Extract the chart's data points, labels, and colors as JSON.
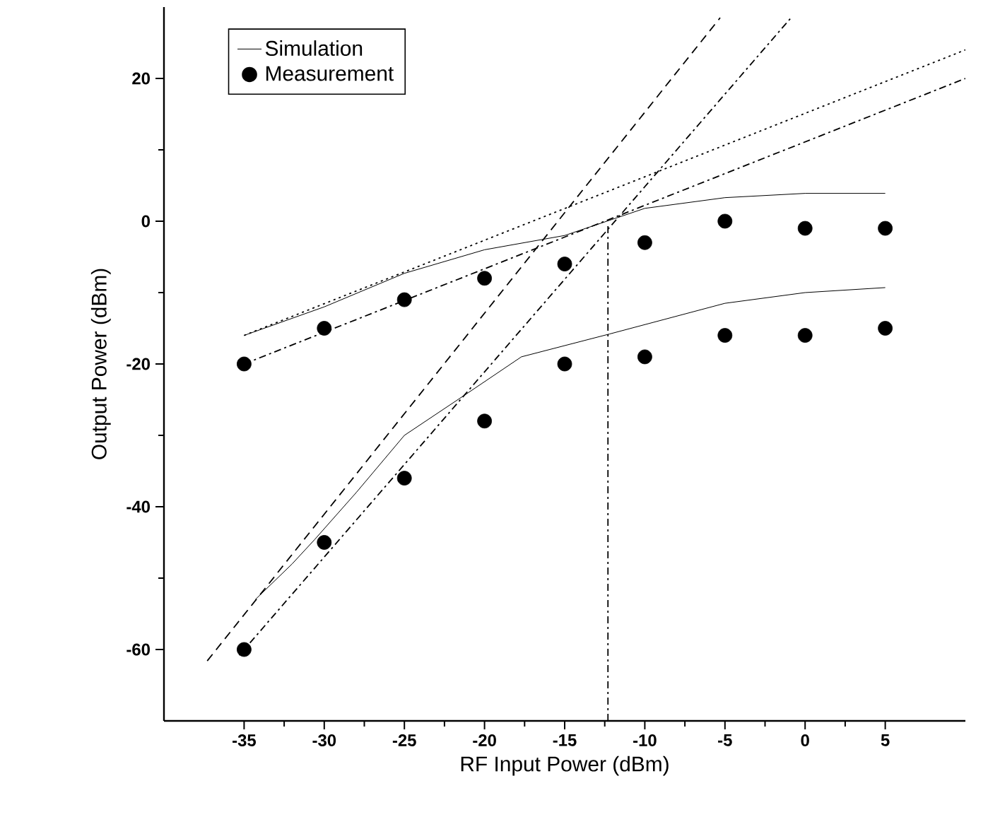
{
  "chart_data": {
    "type": "line",
    "xlabel": "RF Input Power (dBm)",
    "ylabel": "Output Power (dBm)",
    "xlim": [
      -40,
      10
    ],
    "ylim": [
      -70,
      30
    ],
    "xticks": [
      -35,
      -30,
      -25,
      -20,
      -15,
      -10,
      -5,
      0,
      5
    ],
    "yticks": [
      -60,
      -40,
      -20,
      0,
      20
    ],
    "grid": false,
    "legend": "top left",
    "series": [
      {
        "name": "Simulation",
        "color": "#000000",
        "line_style": "solid",
        "marker": "none",
        "x": [
          -35,
          -30,
          -25,
          -20,
          -15,
          -10,
          -5,
          0,
          5
        ],
        "values": [
          -16,
          -12,
          -7.3,
          -4,
          -2,
          1.8,
          3.3,
          3.9,
          3.9
        ]
      },
      {
        "color": "#000000",
        "line_style": "solid",
        "marker": "none",
        "x": [
          -34.3,
          -32,
          -30.6,
          -28,
          -25,
          -21,
          -17.7,
          -12.2,
          -5,
          0,
          5
        ],
        "values": [
          -53,
          -48,
          -44.6,
          -38,
          -30,
          -24,
          -19,
          -15.8,
          -11.5,
          -10,
          -9.3
        ]
      },
      {
        "name": "Measurement",
        "type": "scatter",
        "color": "#000000",
        "marker": "circle",
        "x": [
          -35,
          -30,
          -25,
          -20,
          -15,
          -10,
          -5,
          0,
          5
        ],
        "values": [
          -20,
          -15,
          -11,
          -8,
          -6,
          -3,
          0,
          -1,
          -1
        ]
      },
      {
        "type": "scatter",
        "color": "#000000",
        "marker": "circle",
        "x": [
          -35,
          -30,
          -25,
          -20,
          -15,
          -10,
          -5,
          0,
          5
        ],
        "values": [
          -60,
          -45,
          -36,
          -28,
          -20,
          -19,
          -16,
          -16,
          -15
        ]
      },
      {
        "color": "#000000",
        "line_style": "dotted",
        "marker": "none",
        "x": [
          -35,
          10
        ],
        "values": [
          -16,
          24
        ]
      },
      {
        "color": "#000000",
        "line_style": "dashdot",
        "marker": "none",
        "x": [
          -35,
          10
        ],
        "values": [
          -20,
          20
        ]
      },
      {
        "color": "#000000",
        "line_style": "dashed",
        "marker": "none",
        "x": [
          -37.3,
          -5.3
        ],
        "values": [
          -61.6,
          28.5
        ]
      },
      {
        "color": "#000000",
        "line_style": "dashdot",
        "marker": "none",
        "x": [
          -35.3,
          -0.8
        ],
        "values": [
          -60.8,
          28.7
        ]
      },
      {
        "color": "#000000",
        "line_style": "dashdot",
        "marker": "none",
        "x": [
          -12.3,
          -12.3
        ],
        "values": [
          -70,
          -0.5
        ]
      }
    ]
  }
}
